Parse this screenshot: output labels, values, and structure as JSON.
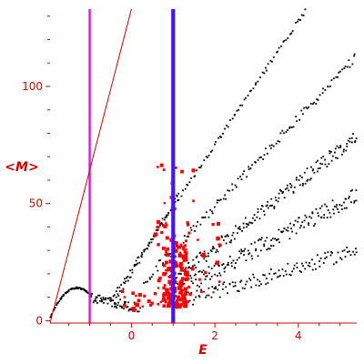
{
  "chart_data": {
    "type": "scatter",
    "title": "",
    "xlabel": "E",
    "ylabel": "<M>",
    "xlim": [
      -1.95,
      5.4
    ],
    "ylim": [
      -1,
      133
    ],
    "xticks": [
      0,
      2,
      4
    ],
    "yticks": [
      0,
      50,
      100
    ],
    "xtick_labels": [
      "0",
      "2",
      "4"
    ],
    "ytick_labels": [
      "0",
      "50",
      "100"
    ],
    "grid": false,
    "colors": {
      "axis": "#d40000",
      "black_points": "#000000",
      "red_points": "#ff0000",
      "line_magenta": "#ff00ff",
      "line_purple": "#7b00ff",
      "line_blue": "#2222ff"
    },
    "vertical_lines": [
      {
        "x": -1.0,
        "color": "#ff00ff"
      },
      {
        "x": 0.98,
        "color": "#7b00ff"
      },
      {
        "x": 1.02,
        "color": "#2222ff"
      }
    ],
    "series": [
      {
        "color": "#000000",
        "style": "dots",
        "bands": [
          {
            "x_range": [
              -0.45,
              5.4
            ],
            "fn": "upper",
            "n": 140,
            "jitter": 1.0
          },
          {
            "x_range": [
              -0.4,
              1.15
            ],
            "fn": "upper_inner",
            "n": 45,
            "jitter": 1.2
          },
          {
            "x_range": [
              0.3,
              5.4
            ],
            "fn": "mid_high",
            "n": 130,
            "jitter": 2.0
          },
          {
            "x_range": [
              1.0,
              5.4
            ],
            "fn": "mid",
            "n": 180,
            "jitter": 3.0
          },
          {
            "x_range": [
              1.2,
              5.4
            ],
            "fn": "mid_low",
            "n": 170,
            "jitter": 3.5
          },
          {
            "x_range": [
              1.4,
              5.4
            ],
            "fn": "low",
            "n": 120,
            "jitter": 3.0
          },
          {
            "x_range": [
              -1.95,
              -0.95
            ],
            "fn": "bump",
            "n": 70,
            "jitter": 0.3
          },
          {
            "x_range": [
              -1.0,
              0.2
            ],
            "fn": "tail",
            "n": 70,
            "jitter": 2.0
          }
        ]
      },
      {
        "color": "#ff0000",
        "style": "squares",
        "cluster": {
          "x_range": [
            -0.25,
            2.1
          ],
          "center_x": 1.05,
          "y_range": [
            2,
            67
          ],
          "n": 230
        }
      }
    ]
  }
}
